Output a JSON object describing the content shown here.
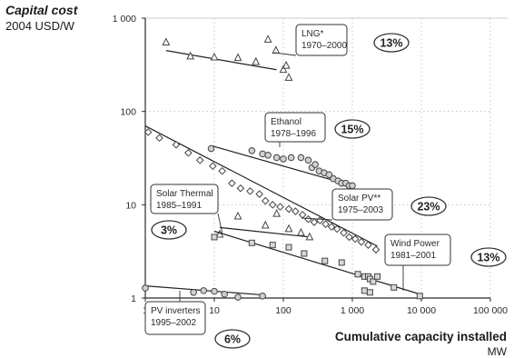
{
  "chart_data": {
    "type": "scatter",
    "title": "",
    "ylabel": "Capital cost",
    "yunit": "2004 USD/W",
    "xlabel": "Cumulative capacity installed",
    "xunit": "MW",
    "xscale": "log",
    "yscale": "log",
    "xlim": [
      1,
      100000
    ],
    "ylim": [
      1,
      1000
    ],
    "grid": "major, dotted",
    "x_ticks": [
      {
        "value": 1,
        "label": "1"
      },
      {
        "value": 10,
        "label": "10"
      },
      {
        "value": 100,
        "label": "100"
      },
      {
        "value": 1000,
        "label": "1 000"
      },
      {
        "value": 10000,
        "label": "10 000"
      },
      {
        "value": 100000,
        "label": "100 000"
      }
    ],
    "y_ticks": [
      {
        "value": 1,
        "label": "1"
      },
      {
        "value": 10,
        "label": "10"
      },
      {
        "value": 100,
        "label": "100"
      },
      {
        "value": 1000,
        "label": "1 000"
      }
    ],
    "series": [
      {
        "name": "LNG*",
        "years": "1970–2000",
        "rate": "13%",
        "marker": "triangle",
        "points": [
          [
            2,
            550
          ],
          [
            4.5,
            390
          ],
          [
            10,
            380
          ],
          [
            22,
            375
          ],
          [
            40,
            340
          ],
          [
            60,
            590
          ],
          [
            78,
            450
          ],
          [
            100,
            280
          ],
          [
            110,
            310
          ],
          [
            120,
            230
          ]
        ],
        "fit": [
          [
            2,
            450
          ],
          [
            80,
            280
          ]
        ]
      },
      {
        "name": "Ethanol",
        "years": "1978–1996",
        "rate": "15%",
        "marker": "circle",
        "points": [
          [
            9,
            40
          ],
          [
            35,
            38
          ],
          [
            50,
            35
          ],
          [
            60,
            34
          ],
          [
            80,
            32
          ],
          [
            100,
            31
          ],
          [
            130,
            32
          ],
          [
            180,
            32
          ],
          [
            230,
            30
          ],
          [
            260,
            25
          ],
          [
            290,
            27
          ],
          [
            330,
            23
          ],
          [
            390,
            22
          ],
          [
            460,
            21
          ],
          [
            530,
            19
          ],
          [
            620,
            18
          ],
          [
            700,
            17
          ],
          [
            800,
            17
          ],
          [
            900,
            16
          ],
          [
            1000,
            16
          ]
        ],
        "fit": [
          [
            9,
            43
          ],
          [
            1000,
            16
          ]
        ]
      },
      {
        "name": "Solar PV**",
        "years": "1975–2003",
        "rate": "23%",
        "marker": "diamond",
        "points": [
          [
            1.1,
            60
          ],
          [
            1.6,
            52
          ],
          [
            2.8,
            44
          ],
          [
            4.2,
            36
          ],
          [
            6.2,
            30
          ],
          [
            9.5,
            26
          ],
          [
            13,
            23
          ],
          [
            18,
            17
          ],
          [
            24,
            15
          ],
          [
            33,
            14
          ],
          [
            45,
            13
          ],
          [
            55,
            11
          ],
          [
            70,
            10
          ],
          [
            90,
            9.5
          ],
          [
            120,
            9
          ],
          [
            150,
            8.5
          ],
          [
            190,
            7.8
          ],
          [
            230,
            7
          ],
          [
            280,
            6.5
          ],
          [
            340,
            6.8
          ],
          [
            410,
            6.2
          ],
          [
            500,
            5.8
          ],
          [
            600,
            5.5
          ],
          [
            750,
            5
          ],
          [
            900,
            4.5
          ],
          [
            1100,
            4.3
          ],
          [
            1350,
            4
          ],
          [
            1700,
            3.7
          ],
          [
            2200,
            3.3
          ]
        ],
        "fit": [
          [
            1,
            70
          ],
          [
            2300,
            3.6
          ]
        ]
      },
      {
        "name": "Solar Thermal",
        "years": "1985–1991",
        "rate": "3%",
        "marker": "triangle",
        "points": [
          [
            12,
            4.8
          ],
          [
            22,
            7.5
          ],
          [
            55,
            6
          ],
          [
            80,
            8
          ],
          [
            120,
            5.5
          ],
          [
            180,
            5
          ],
          [
            240,
            4.5
          ]
        ],
        "fit": [
          [
            12,
            5.7
          ],
          [
            250,
            4.5
          ]
        ]
      },
      {
        "name": "Wind Power",
        "years": "1981–2001",
        "rate": "13%",
        "marker": "square",
        "points": [
          [
            10,
            4.5
          ],
          [
            35,
            3.9
          ],
          [
            70,
            3.7
          ],
          [
            120,
            3.5
          ],
          [
            200,
            3
          ],
          [
            400,
            2.5
          ],
          [
            700,
            2.4
          ],
          [
            1200,
            1.8
          ],
          [
            1500,
            1.7
          ],
          [
            1700,
            1.7
          ],
          [
            1800,
            1.6
          ],
          [
            2000,
            1.5
          ],
          [
            2300,
            1.7
          ],
          [
            4000,
            1.3
          ],
          [
            9500,
            1.05
          ],
          [
            1500,
            1.2
          ],
          [
            1800,
            1.15
          ]
        ],
        "fit": [
          [
            10,
            5.2
          ],
          [
            9500,
            1.1
          ]
        ]
      },
      {
        "name": "PV inverters",
        "years": "1995–2002",
        "rate": "6%",
        "marker": "circle",
        "points": [
          [
            1,
            1.28
          ],
          [
            5,
            1.15
          ],
          [
            7,
            1.2
          ],
          [
            10,
            1.18
          ],
          [
            14,
            1.1
          ],
          [
            22,
            1.02
          ],
          [
            50,
            1.05
          ]
        ],
        "fit": [
          [
            1,
            1.35
          ],
          [
            50,
            1.08
          ]
        ]
      }
    ],
    "annotations": [
      {
        "series": "LNG*",
        "title": "LNG*",
        "years": "1970–2000",
        "rate": "13%"
      },
      {
        "series": "Ethanol",
        "title": "Ethanol",
        "years": "1978–1996",
        "rate": "15%"
      },
      {
        "series": "Solar Thermal",
        "title": "Solar Thermal",
        "years": "1985–1991",
        "rate": "3%"
      },
      {
        "series": "Solar PV**",
        "title": "Solar PV**",
        "years": "1975–2003",
        "rate": "23%"
      },
      {
        "series": "Wind Power",
        "title": "Wind Power",
        "years": "1981–2001",
        "rate": "13%"
      },
      {
        "series": "PV inverters",
        "title": "PV inverters",
        "years": "1995–2002",
        "rate": "6%"
      }
    ]
  }
}
